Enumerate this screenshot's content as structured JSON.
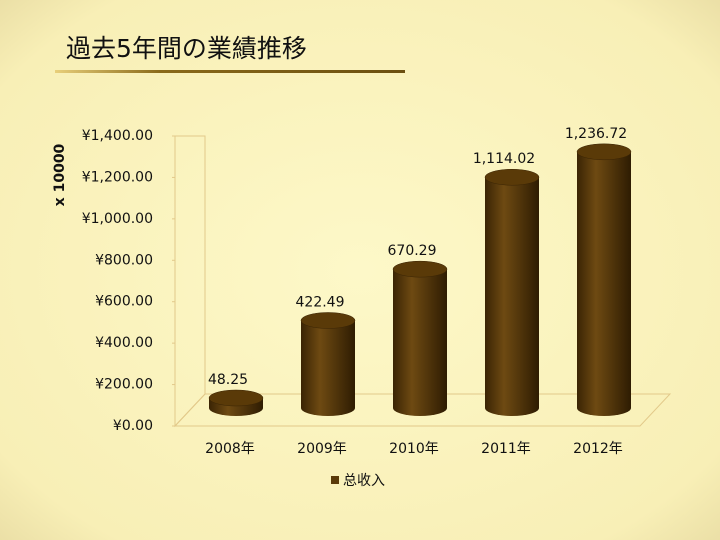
{
  "chart_data": {
    "type": "bar",
    "title": "過去5年間の業績推移",
    "y_label": "x 10000",
    "categories": [
      "2008年",
      "2009年",
      "2010年",
      "2011年",
      "2012年"
    ],
    "series": [
      {
        "name": "总收入",
        "color": "#5a3a08",
        "values": [
          48.25,
          422.49,
          670.29,
          1114.02,
          1236.72
        ],
        "value_labels": [
          "48.25",
          "422.49",
          "670.29",
          "1,114.02",
          "1,236.72"
        ]
      }
    ],
    "ylim": [
      0,
      1400
    ],
    "yticks": [
      {
        "value": 0,
        "label": "¥0.00"
      },
      {
        "value": 200,
        "label": "¥200.00"
      },
      {
        "value": 400,
        "label": "¥400.00"
      },
      {
        "value": 600,
        "label": "¥600.00"
      },
      {
        "value": 800,
        "label": "¥800.00"
      },
      {
        "value": 1000,
        "label": "¥1,000.00"
      },
      {
        "value": 1200,
        "label": "¥1,200.00"
      },
      {
        "value": 1400,
        "label": "¥1,400.00"
      }
    ],
    "legend": "bottom"
  }
}
